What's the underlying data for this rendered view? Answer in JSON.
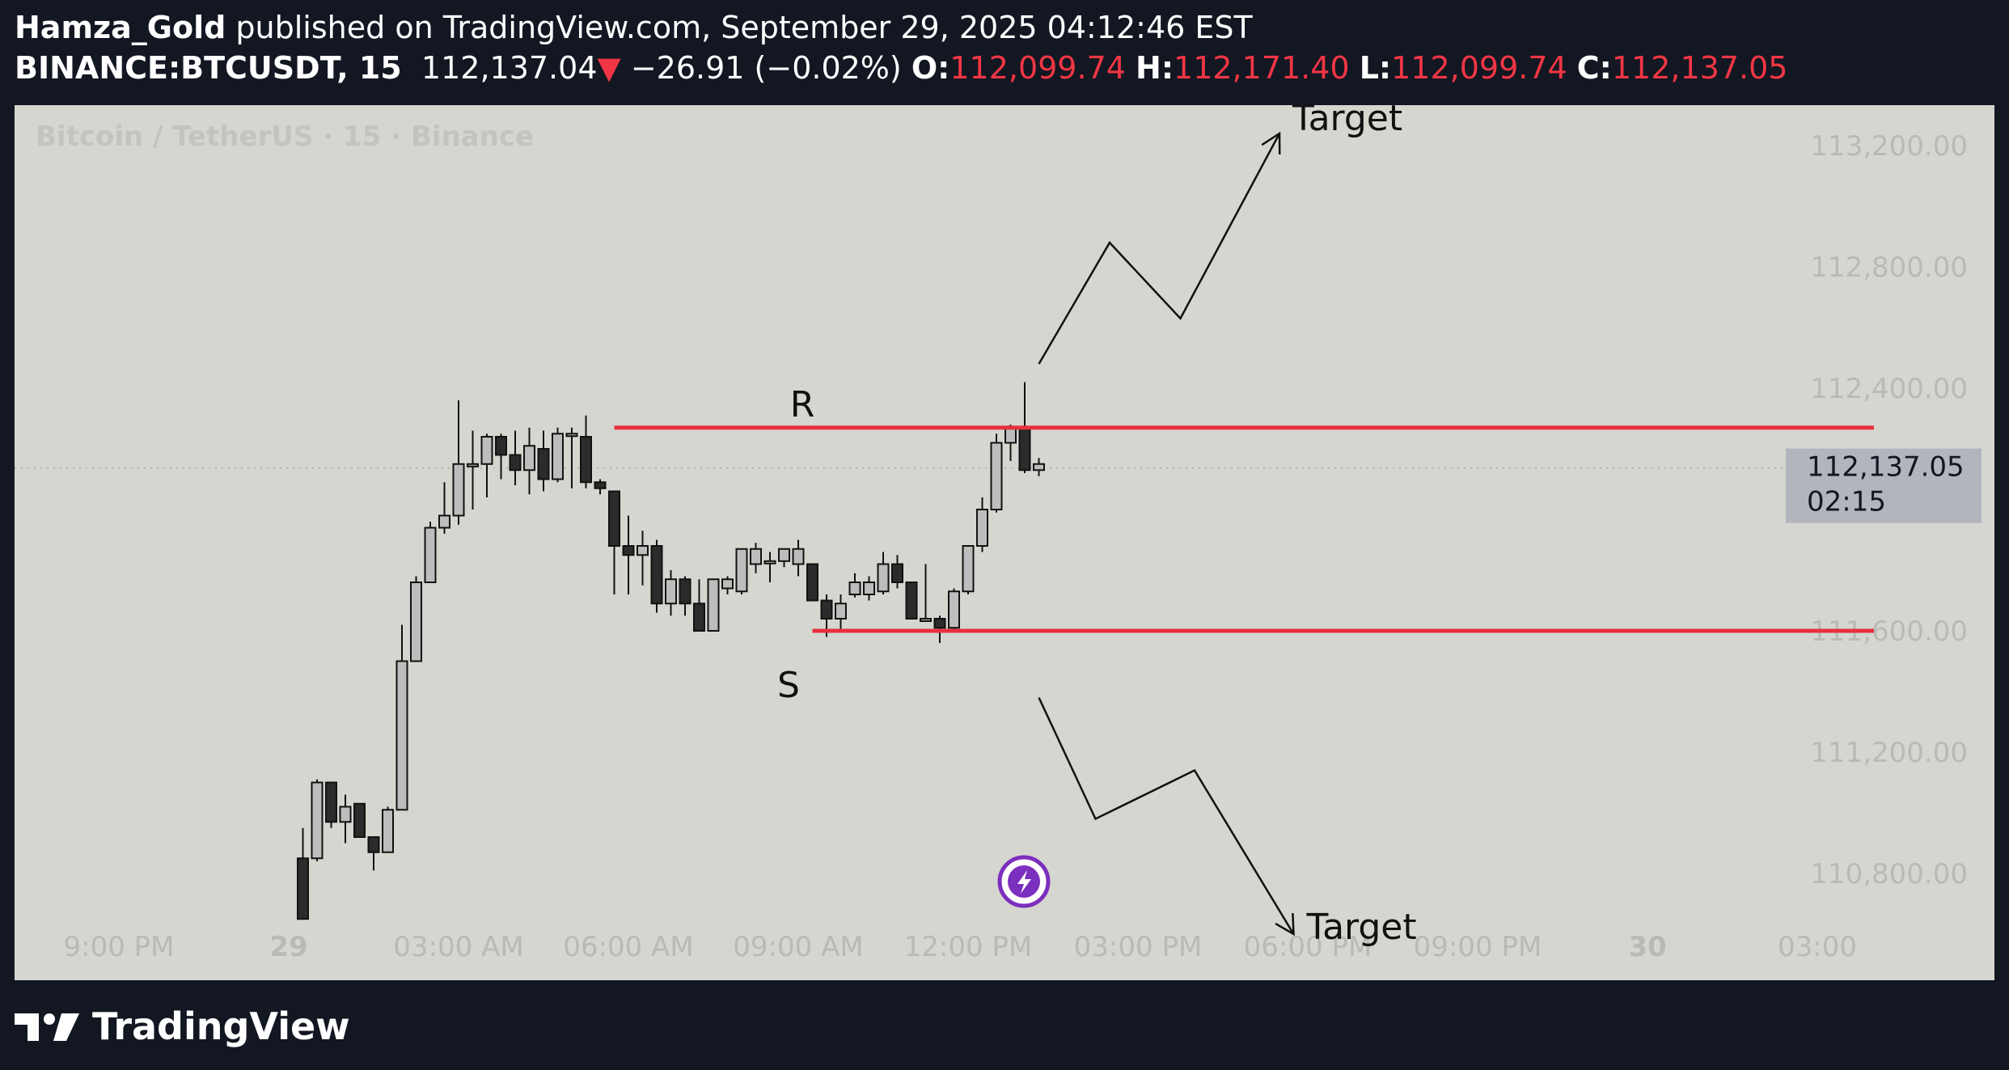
{
  "header": {
    "author": "Hamza_Gold",
    "published_text": "published on TradingView.com, September 29, 2025 04:12:46 EST",
    "symbol": "BINANCE:BTCUSDT, 15",
    "last_price": "112,137.04",
    "change_arrow": "▼",
    "change": "−26.91 (−0.02%)",
    "o_label": "O:",
    "o_value": "112,099.74",
    "h_label": "H:",
    "h_value": "112,171.40",
    "l_label": "L:",
    "l_value": "112,099.74",
    "c_label": "C:",
    "c_value": "112,137.05"
  },
  "footer": {
    "brand": "TradingView"
  },
  "colors": {
    "background": "#131722",
    "chart_bg": "#d6d6d0",
    "level_line": "#e8303d",
    "price_tag": "#b2b5be",
    "red": "#f23645"
  },
  "chart_data": {
    "type": "candlestick",
    "title": "Bitcoin / TetherUS · 15 · Binance",
    "y_axis": {
      "side": "right",
      "ticks": [
        {
          "value": 113200,
          "label": "113,200.00"
        },
        {
          "value": 112800,
          "label": "112,800.00"
        },
        {
          "value": 112400,
          "label": "112,400.00"
        },
        {
          "value": 111600,
          "label": "111,600.00"
        },
        {
          "value": 111200,
          "label": "111,200.00"
        },
        {
          "value": 110800,
          "label": "110,800.00"
        }
      ],
      "range": [
        110550,
        113300
      ]
    },
    "x_axis": {
      "ticks": [
        {
          "t": -20,
          "label": "9:00 PM"
        },
        {
          "t": -8,
          "label": "29"
        },
        {
          "t": 4,
          "label": "03:00 AM"
        },
        {
          "t": 16,
          "label": "06:00 AM"
        },
        {
          "t": 28,
          "label": "09:00 AM"
        },
        {
          "t": 40,
          "label": "12:00 PM"
        },
        {
          "t": 52,
          "label": "03:00 PM"
        },
        {
          "t": 64,
          "label": "06:00 PM"
        },
        {
          "t": 76,
          "label": "09:00 PM"
        },
        {
          "t": 88,
          "label": "30"
        },
        {
          "t": 100,
          "label": "03:00"
        }
      ]
    },
    "price_tag": {
      "value": 112137.05,
      "label": "112,137.05",
      "countdown": "02:15"
    },
    "levels": [
      {
        "name": "R",
        "value": 112270,
        "t_start": 15,
        "t_end": 104
      },
      {
        "name": "S",
        "value": 111600,
        "t_start": 29,
        "t_end": 104
      }
    ],
    "annotations": [
      {
        "text": "Target",
        "direction": "up",
        "path": [
          [
            45,
            112480
          ],
          [
            50,
            112880
          ],
          [
            55,
            112630
          ],
          [
            62,
            113240
          ]
        ]
      },
      {
        "text": "Target",
        "direction": "down",
        "path": [
          [
            45,
            111380
          ],
          [
            49,
            110980
          ],
          [
            56,
            111140
          ],
          [
            63,
            110600
          ]
        ]
      }
    ],
    "candles": [
      [
        -7,
        110850,
        110950,
        110650,
        110650
      ],
      [
        -6,
        110850,
        111110,
        110840,
        111100
      ],
      [
        -5,
        111100,
        111100,
        110950,
        110970
      ],
      [
        -4,
        110970,
        111060,
        110900,
        111020
      ],
      [
        -3,
        111030,
        111030,
        110920,
        110920
      ],
      [
        -2,
        110920,
        110920,
        110810,
        110870
      ],
      [
        -1,
        110870,
        111020,
        110870,
        111010
      ],
      [
        0,
        111010,
        111620,
        111010,
        111500
      ],
      [
        1,
        111500,
        111780,
        111500,
        111760
      ],
      [
        2,
        111760,
        111960,
        111760,
        111940
      ],
      [
        3,
        111940,
        112090,
        111920,
        111980
      ],
      [
        4,
        111980,
        112360,
        111950,
        112150
      ],
      [
        5,
        112150,
        112260,
        112000,
        112150
      ],
      [
        6,
        112150,
        112250,
        112040,
        112240
      ],
      [
        7,
        112240,
        112250,
        112100,
        112180
      ],
      [
        8,
        112180,
        112260,
        112080,
        112130
      ],
      [
        9,
        112130,
        112270,
        112050,
        112210
      ],
      [
        10,
        112200,
        112260,
        112060,
        112100
      ],
      [
        11,
        112100,
        112270,
        112090,
        112250
      ],
      [
        12,
        112250,
        112270,
        112070,
        112250
      ],
      [
        13,
        112240,
        112310,
        112070,
        112090
      ],
      [
        14,
        112090,
        112100,
        112050,
        112070
      ],
      [
        15,
        112060,
        112060,
        111720,
        111880
      ],
      [
        16,
        111880,
        111980,
        111720,
        111850
      ],
      [
        17,
        111850,
        111930,
        111750,
        111880
      ],
      [
        18,
        111880,
        111900,
        111660,
        111690
      ],
      [
        19,
        111690,
        111800,
        111650,
        111770
      ],
      [
        20,
        111770,
        111780,
        111650,
        111690
      ],
      [
        21,
        111690,
        111770,
        111600,
        111600
      ],
      [
        22,
        111600,
        111770,
        111600,
        111770
      ],
      [
        23,
        111740,
        111780,
        111720,
        111770
      ],
      [
        24,
        111730,
        111870,
        111720,
        111870
      ],
      [
        25,
        111820,
        111890,
        111790,
        111870
      ],
      [
        26,
        111830,
        111860,
        111760,
        111830
      ],
      [
        27,
        111830,
        111870,
        111810,
        111870
      ],
      [
        28,
        111820,
        111900,
        111780,
        111870
      ],
      [
        29,
        111820,
        111820,
        111700,
        111700
      ],
      [
        30,
        111700,
        111720,
        111580,
        111640
      ],
      [
        31,
        111640,
        111720,
        111600,
        111690
      ],
      [
        32,
        111720,
        111790,
        111710,
        111760
      ],
      [
        33,
        111720,
        111780,
        111700,
        111760
      ],
      [
        34,
        111730,
        111860,
        111720,
        111820
      ],
      [
        35,
        111820,
        111850,
        111740,
        111760
      ],
      [
        36,
        111760,
        111760,
        111640,
        111640
      ],
      [
        37,
        111640,
        111820,
        111630,
        111640
      ],
      [
        38,
        111640,
        111650,
        111560,
        111610
      ],
      [
        39,
        111610,
        111740,
        111600,
        111730
      ],
      [
        40,
        111730,
        111880,
        111720,
        111880
      ],
      [
        41,
        111880,
        112040,
        111860,
        112000
      ],
      [
        42,
        112000,
        112250,
        111990,
        112220
      ],
      [
        43,
        112220,
        112280,
        112160,
        112270
      ],
      [
        44,
        112270,
        112420,
        112120,
        112130
      ],
      [
        45,
        112130,
        112170,
        112110,
        112150
      ]
    ]
  }
}
